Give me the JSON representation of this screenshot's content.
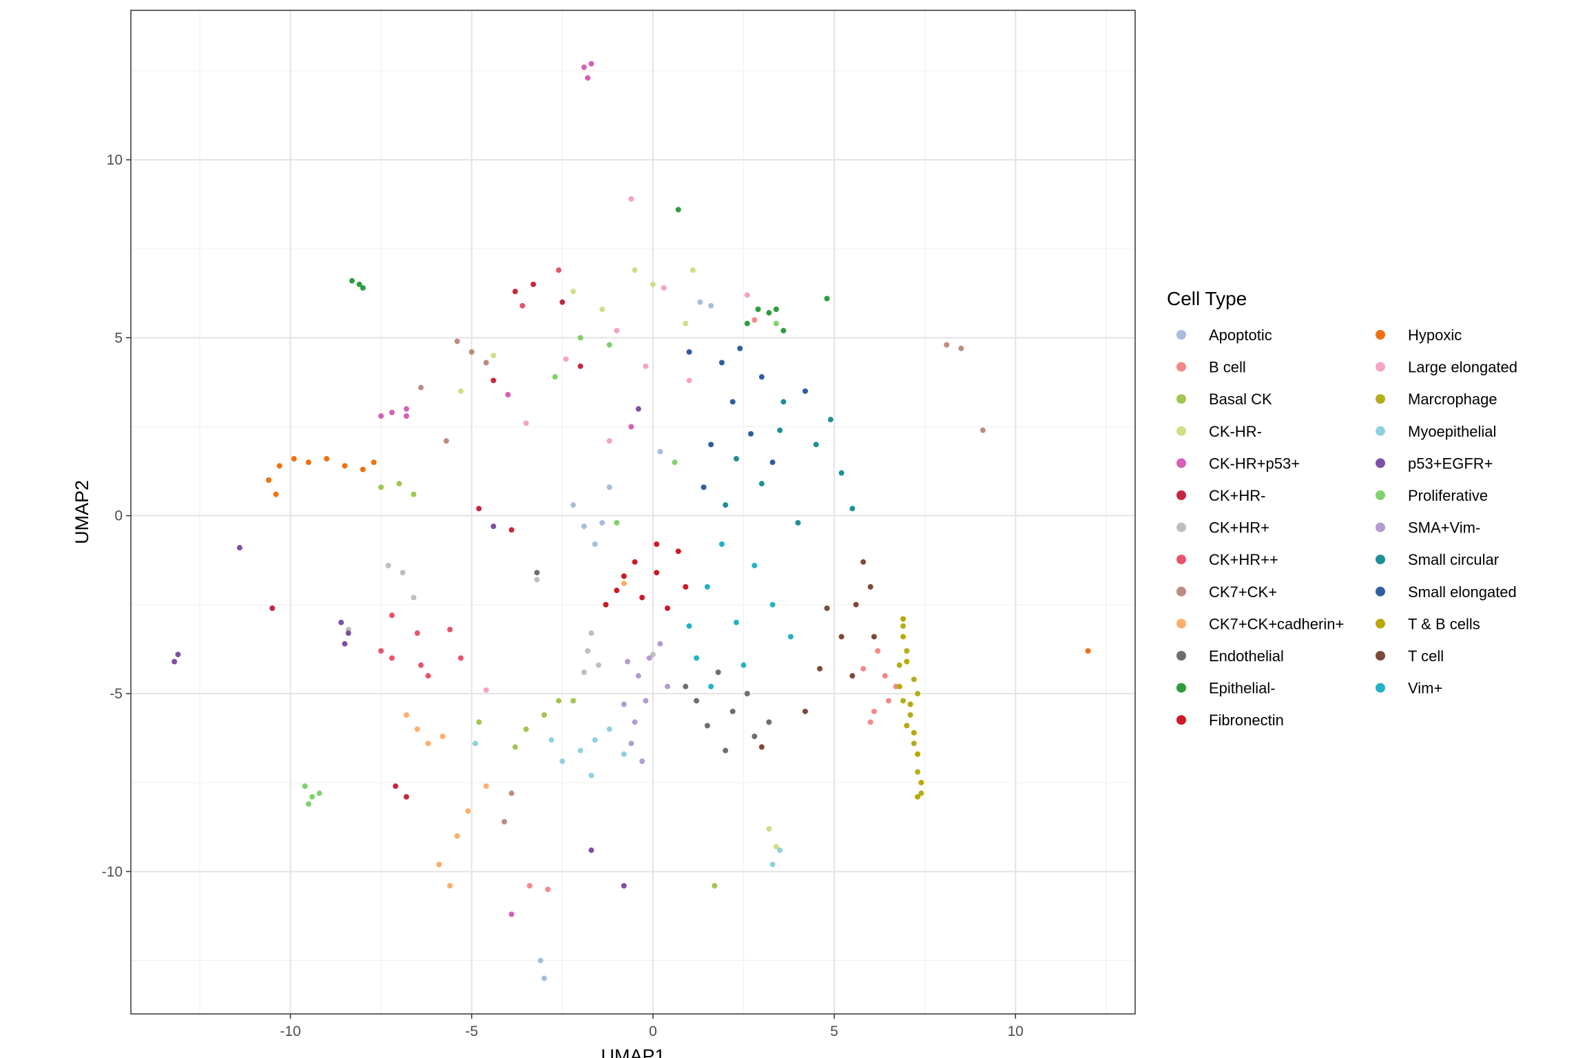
{
  "chart_data": {
    "type": "scatter",
    "title": "",
    "xlabel": "UMAP1",
    "ylabel": "UMAP2",
    "xlim": [
      -14.4,
      13.3
    ],
    "ylim": [
      -14.0,
      14.2
    ],
    "x_ticks": [
      -10,
      -5,
      0,
      5,
      10
    ],
    "y_ticks": [
      -10,
      -5,
      0,
      5,
      10
    ],
    "grid": true,
    "legend": {
      "title": "Cell Type",
      "position": "right",
      "columns": 2
    },
    "series": [
      {
        "name": "Apoptotic",
        "color": "#A6BDDB",
        "points": [
          [
            -1.9,
            -0.3
          ],
          [
            -1.6,
            -0.8
          ],
          [
            -2.2,
            0.3
          ],
          [
            -1.4,
            -0.2
          ],
          [
            -1.2,
            0.8
          ],
          [
            -3.1,
            -12.5
          ],
          [
            -3.0,
            -13.0
          ],
          [
            0.2,
            1.8
          ],
          [
            1.6,
            5.9
          ],
          [
            1.3,
            6.0
          ]
        ]
      },
      {
        "name": "B cell",
        "color": "#F4888A",
        "points": [
          [
            6.4,
            -4.5
          ],
          [
            6.5,
            -5.2
          ],
          [
            6.1,
            -5.5
          ],
          [
            5.8,
            -4.3
          ],
          [
            6.7,
            -4.8
          ],
          [
            6.2,
            -3.8
          ],
          [
            6.0,
            -5.8
          ],
          [
            -3.4,
            -10.4
          ],
          [
            -2.9,
            -10.5
          ],
          [
            2.8,
            5.5
          ]
        ]
      },
      {
        "name": "Basal CK",
        "color": "#A3C552",
        "points": [
          [
            -3.0,
            -5.6
          ],
          [
            -3.5,
            -6.0
          ],
          [
            -2.6,
            -5.2
          ],
          [
            -3.8,
            -6.5
          ],
          [
            -4.8,
            -5.8
          ],
          [
            -7.5,
            0.8
          ],
          [
            -7.0,
            0.9
          ],
          [
            -6.6,
            0.6
          ],
          [
            1.7,
            -10.4
          ],
          [
            -2.2,
            -5.2
          ]
        ]
      },
      {
        "name": "CK-HR-",
        "color": "#D2DD86",
        "points": [
          [
            0.0,
            6.5
          ],
          [
            -0.5,
            6.9
          ],
          [
            1.1,
            6.9
          ],
          [
            -1.4,
            5.8
          ],
          [
            -4.4,
            4.5
          ],
          [
            -5.3,
            3.5
          ],
          [
            -2.2,
            6.3
          ],
          [
            0.9,
            5.4
          ],
          [
            3.2,
            -8.8
          ],
          [
            3.4,
            -9.3
          ]
        ]
      },
      {
        "name": "CK-HR+p53+",
        "color": "#D65FB8",
        "points": [
          [
            -1.9,
            12.6
          ],
          [
            -1.8,
            12.3
          ],
          [
            -7.2,
            2.9
          ],
          [
            -7.5,
            2.8
          ],
          [
            -6.8,
            2.8
          ],
          [
            -3.9,
            -11.2
          ],
          [
            -6.8,
            3.0
          ],
          [
            -1.7,
            12.7
          ],
          [
            -4.0,
            3.4
          ],
          [
            -0.6,
            2.5
          ]
        ]
      },
      {
        "name": "CK+HR-",
        "color": "#C4283E",
        "points": [
          [
            -3.3,
            6.5
          ],
          [
            -2.5,
            6.0
          ],
          [
            -3.8,
            6.3
          ],
          [
            -4.4,
            3.8
          ],
          [
            -4.8,
            0.2
          ],
          [
            -3.9,
            -0.4
          ],
          [
            -7.1,
            -7.6
          ],
          [
            -6.8,
            -7.9
          ],
          [
            -10.5,
            -2.6
          ],
          [
            -2.0,
            4.2
          ]
        ]
      },
      {
        "name": "CK+HR+",
        "color": "#BEBEBE",
        "points": [
          [
            -6.9,
            -1.6
          ],
          [
            -7.3,
            -1.4
          ],
          [
            -6.6,
            -2.3
          ],
          [
            -1.8,
            -3.8
          ],
          [
            -1.5,
            -4.2
          ],
          [
            -1.7,
            -3.3
          ],
          [
            -3.2,
            -1.8
          ],
          [
            -8.4,
            -3.2
          ],
          [
            0.0,
            -3.9
          ],
          [
            -1.9,
            -4.4
          ]
        ]
      },
      {
        "name": "CK+HR++",
        "color": "#E8546A",
        "points": [
          [
            -7.5,
            -3.8
          ],
          [
            -7.2,
            -4.0
          ],
          [
            -6.5,
            -3.3
          ],
          [
            -6.2,
            -4.5
          ],
          [
            -5.6,
            -3.2
          ],
          [
            -5.3,
            -4.0
          ],
          [
            -7.2,
            -2.8
          ],
          [
            -6.4,
            -4.2
          ],
          [
            -2.6,
            6.9
          ],
          [
            -3.6,
            5.9
          ]
        ]
      },
      {
        "name": "CK7+CK+",
        "color": "#BC8C7E",
        "points": [
          [
            -5.0,
            4.6
          ],
          [
            -4.6,
            4.3
          ],
          [
            -5.4,
            4.9
          ],
          [
            -4.1,
            -8.6
          ],
          [
            8.1,
            4.8
          ],
          [
            8.5,
            4.7
          ],
          [
            9.1,
            2.4
          ],
          [
            -5.7,
            2.1
          ],
          [
            -6.4,
            3.6
          ],
          [
            -3.9,
            -7.8
          ]
        ]
      },
      {
        "name": "CK7+CK+cadherin+",
        "color": "#FDAE6B",
        "points": [
          [
            -6.5,
            -6.0
          ],
          [
            -6.2,
            -6.4
          ],
          [
            -5.8,
            -6.2
          ],
          [
            -5.1,
            -8.3
          ],
          [
            -5.4,
            -9.0
          ],
          [
            -5.9,
            -9.8
          ],
          [
            -5.6,
            -10.4
          ],
          [
            -4.6,
            -7.6
          ],
          [
            -6.8,
            -5.6
          ],
          [
            -0.8,
            -1.9
          ]
        ]
      },
      {
        "name": "Endothelial",
        "color": "#6E6E6E",
        "points": [
          [
            2.2,
            -5.5
          ],
          [
            1.5,
            -5.9
          ],
          [
            2.8,
            -6.2
          ],
          [
            1.2,
            -5.2
          ],
          [
            2.0,
            -6.6
          ],
          [
            3.2,
            -5.8
          ],
          [
            -3.2,
            -1.6
          ],
          [
            0.9,
            -4.8
          ],
          [
            2.6,
            -5.0
          ],
          [
            1.8,
            -4.4
          ]
        ]
      },
      {
        "name": "Epithelial-",
        "color": "#2E9C3C",
        "points": [
          [
            -8.1,
            6.5
          ],
          [
            -8.3,
            6.6
          ],
          [
            -8.0,
            6.4
          ],
          [
            2.9,
            5.8
          ],
          [
            3.2,
            5.7
          ],
          [
            3.4,
            5.8
          ],
          [
            0.7,
            8.6
          ],
          [
            4.8,
            6.1
          ],
          [
            2.6,
            5.4
          ],
          [
            3.6,
            5.2
          ]
        ]
      },
      {
        "name": "Fibronectin",
        "color": "#CC1A26",
        "points": [
          [
            -0.5,
            -1.3
          ],
          [
            0.1,
            -1.6
          ],
          [
            -0.3,
            -2.3
          ],
          [
            0.7,
            -1.0
          ],
          [
            0.4,
            -2.6
          ],
          [
            -1.0,
            -2.1
          ],
          [
            -1.3,
            -2.5
          ],
          [
            0.1,
            -0.8
          ],
          [
            0.9,
            -2.0
          ],
          [
            -0.8,
            -1.7
          ]
        ]
      },
      {
        "name": "Hypoxic",
        "color": "#F0710F",
        "points": [
          [
            -10.3,
            1.4
          ],
          [
            -9.9,
            1.6
          ],
          [
            -9.5,
            1.5
          ],
          [
            -9.0,
            1.6
          ],
          [
            -8.5,
            1.4
          ],
          [
            -8.0,
            1.3
          ],
          [
            -10.6,
            1.0
          ],
          [
            -10.4,
            0.6
          ],
          [
            -7.7,
            1.5
          ],
          [
            12.0,
            -3.8
          ]
        ]
      },
      {
        "name": "Large elongated",
        "color": "#F5A3C7",
        "points": [
          [
            -0.6,
            8.9
          ],
          [
            0.3,
            6.4
          ],
          [
            -1.0,
            5.2
          ],
          [
            -2.4,
            4.4
          ],
          [
            1.0,
            3.8
          ],
          [
            -3.5,
            2.6
          ],
          [
            2.6,
            6.2
          ],
          [
            -0.2,
            4.2
          ],
          [
            -1.2,
            2.1
          ],
          [
            -4.6,
            -4.9
          ]
        ]
      },
      {
        "name": "Marcrophage",
        "color": "#B3AD1A",
        "points": [
          [
            7.0,
            -3.8
          ],
          [
            7.2,
            -4.6
          ],
          [
            7.1,
            -5.6
          ],
          [
            7.2,
            -6.4
          ],
          [
            7.3,
            -7.2
          ],
          [
            7.4,
            -7.8
          ],
          [
            6.9,
            -3.1
          ],
          [
            6.8,
            -4.2
          ],
          [
            7.3,
            -5.0
          ],
          [
            6.9,
            -5.2
          ]
        ]
      },
      {
        "name": "Myoepithelial",
        "color": "#8FD1E0",
        "points": [
          [
            -1.6,
            -6.3
          ],
          [
            -2.0,
            -6.6
          ],
          [
            -1.2,
            -6.0
          ],
          [
            -2.5,
            -6.9
          ],
          [
            -1.7,
            -7.3
          ],
          [
            -0.8,
            -6.7
          ],
          [
            -2.8,
            -6.3
          ],
          [
            3.5,
            -9.4
          ],
          [
            3.3,
            -9.8
          ],
          [
            -4.9,
            -6.4
          ]
        ]
      },
      {
        "name": "p53+EGFR+",
        "color": "#7E4FA3",
        "points": [
          [
            -8.6,
            -3.0
          ],
          [
            -8.5,
            -3.6
          ],
          [
            -8.4,
            -3.3
          ],
          [
            -13.1,
            -3.9
          ],
          [
            -13.2,
            -4.1
          ],
          [
            -11.4,
            -0.9
          ],
          [
            -1.7,
            -9.4
          ],
          [
            -0.8,
            -10.4
          ],
          [
            -4.4,
            -0.3
          ],
          [
            -0.4,
            3.0
          ]
        ]
      },
      {
        "name": "Proliferative",
        "color": "#7FD16B",
        "points": [
          [
            -9.6,
            -7.6
          ],
          [
            -9.4,
            -7.9
          ],
          [
            -9.2,
            -7.8
          ],
          [
            -9.5,
            -8.1
          ],
          [
            -1.0,
            -0.2
          ],
          [
            3.4,
            5.4
          ],
          [
            -2.7,
            3.9
          ],
          [
            -1.2,
            4.8
          ],
          [
            0.6,
            1.5
          ],
          [
            -2.0,
            5.0
          ]
        ]
      },
      {
        "name": "SMA+Vim-",
        "color": "#B39CD0",
        "points": [
          [
            -0.4,
            -4.5
          ],
          [
            -0.2,
            -5.2
          ],
          [
            -0.5,
            -5.8
          ],
          [
            -0.1,
            -4.0
          ],
          [
            -0.6,
            -6.4
          ],
          [
            0.2,
            -3.6
          ],
          [
            -0.3,
            -6.9
          ],
          [
            -0.8,
            -5.3
          ],
          [
            0.4,
            -4.8
          ],
          [
            -0.7,
            -4.1
          ]
        ]
      },
      {
        "name": "Small circular",
        "color": "#1F8E96",
        "points": [
          [
            3.5,
            2.4
          ],
          [
            4.5,
            2.0
          ],
          [
            5.2,
            1.2
          ],
          [
            3.0,
            0.9
          ],
          [
            4.0,
            -0.2
          ],
          [
            2.3,
            1.6
          ],
          [
            5.5,
            0.2
          ],
          [
            3.6,
            3.2
          ],
          [
            4.9,
            2.7
          ],
          [
            2.0,
            0.3
          ]
        ]
      },
      {
        "name": "Small elongated",
        "color": "#2F5EA0",
        "points": [
          [
            2.2,
            3.2
          ],
          [
            1.6,
            2.0
          ],
          [
            3.0,
            3.9
          ],
          [
            1.9,
            4.3
          ],
          [
            2.7,
            2.3
          ],
          [
            1.0,
            4.6
          ],
          [
            2.4,
            4.7
          ],
          [
            4.2,
            3.5
          ],
          [
            3.3,
            1.5
          ],
          [
            1.4,
            0.8
          ]
        ]
      },
      {
        "name": "T & B cells",
        "color": "#B8A800",
        "points": [
          [
            6.9,
            -3.4
          ],
          [
            7.0,
            -4.1
          ],
          [
            7.1,
            -5.3
          ],
          [
            7.2,
            -6.1
          ],
          [
            7.3,
            -6.7
          ],
          [
            7.4,
            -7.5
          ],
          [
            6.8,
            -4.8
          ],
          [
            7.0,
            -5.9
          ],
          [
            7.3,
            -7.9
          ],
          [
            6.9,
            -2.9
          ]
        ]
      },
      {
        "name": "T cell",
        "color": "#7B4A39",
        "points": [
          [
            5.6,
            -2.5
          ],
          [
            6.0,
            -2.0
          ],
          [
            5.2,
            -3.4
          ],
          [
            4.6,
            -4.3
          ],
          [
            5.5,
            -4.5
          ],
          [
            6.1,
            -3.4
          ],
          [
            4.2,
            -5.5
          ],
          [
            3.0,
            -6.5
          ],
          [
            5.8,
            -1.3
          ],
          [
            4.8,
            -2.6
          ]
        ]
      },
      {
        "name": "Vim+",
        "color": "#23B3C5",
        "points": [
          [
            1.5,
            -2.0
          ],
          [
            2.3,
            -3.0
          ],
          [
            1.2,
            -4.0
          ],
          [
            2.8,
            -1.4
          ],
          [
            1.9,
            -0.8
          ],
          [
            3.3,
            -2.5
          ],
          [
            1.0,
            -3.1
          ],
          [
            2.5,
            -4.2
          ],
          [
            3.8,
            -3.4
          ],
          [
            1.6,
            -4.8
          ]
        ]
      }
    ]
  }
}
